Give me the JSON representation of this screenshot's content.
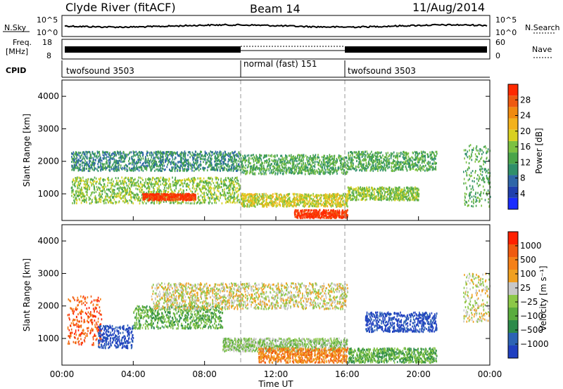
{
  "header": {
    "station": "Clyde River (fitACF)",
    "beam": "Beam 14",
    "date": "11/Aug/2014"
  },
  "noise_panel": {
    "left_label": "N.Sky",
    "left_ticks": [
      "10^5",
      "10^0"
    ],
    "right_label": "N.Search",
    "right_ticks": [
      "10^5",
      "10^0"
    ]
  },
  "freq_panel": {
    "left_label_1": "Freq.",
    "left_label_2": "[MHz]",
    "left_ticks": [
      "18",
      "8"
    ],
    "right_label": "Nave",
    "right_ticks": [
      "60",
      "0"
    ]
  },
  "cpid_panel": {
    "label": "CPID",
    "segments": [
      {
        "text": "twofsound 3503",
        "start_h": 0,
        "end_h": 10
      },
      {
        "text": "normal (fast) 151",
        "start_h": 10,
        "end_h": 16
      },
      {
        "text": "twofsound 3503",
        "start_h": 16,
        "end_h": 24
      }
    ]
  },
  "axes": {
    "xlabel": "Time UT",
    "xticks": [
      "00:00",
      "04:00",
      "08:00",
      "12:00",
      "16:00",
      "20:00",
      "00:00"
    ],
    "ylabel": "Slant Range [km]",
    "yticks": [
      "1000",
      "2000",
      "3000",
      "4000"
    ]
  },
  "power_colorbar": {
    "label": "Power [dB]",
    "ticks": [
      "4",
      "8",
      "12",
      "16",
      "20",
      "24",
      "28"
    ],
    "colors": [
      "#1a2cff",
      "#1f3fae",
      "#2e66a8",
      "#2f8f6a",
      "#4aa54a",
      "#7cc142",
      "#d8d020",
      "#f2b21c",
      "#f08a10",
      "#ee5a10",
      "#ff2a00"
    ]
  },
  "velocity_colorbar": {
    "label": "Velocity [m s⁻¹]",
    "ticks": [
      "1000",
      "500",
      "100",
      "25",
      "−25",
      "−100",
      "−500",
      "−1000"
    ],
    "colors": [
      "#2040c0",
      "#2c63b4",
      "#2c8a4a",
      "#5aac3e",
      "#8cc848",
      "#c8c8c8",
      "#f0a020",
      "#f58018",
      "#f05a10",
      "#ff2000"
    ]
  },
  "chart_data": [
    {
      "type": "line",
      "title": "Clyde River (fitACF)",
      "panel": "N.Sky / N.Search",
      "x_range_h": [
        0,
        24
      ],
      "y_scale": "log",
      "ylim": [
        1,
        100000
      ]
    },
    {
      "type": "line",
      "panel": "Freq. [MHz] / Nave",
      "x_range_h": [
        0,
        24
      ],
      "ylim_freq": [
        8,
        18
      ],
      "ylim_nave": [
        0,
        60
      ]
    },
    {
      "type": "heatmap",
      "panel": "power",
      "xlabel": "Time UT",
      "ylabel": "Slant Range [km]",
      "xlim_h": [
        0,
        24
      ],
      "ylim_km": [
        180,
        4500
      ],
      "colorbar_label": "Power [dB]",
      "colorbar_range": [
        0,
        30
      ],
      "scatter_bands": [
        {
          "t0": 0.5,
          "t1": 10,
          "r0": 1700,
          "r1": 2300,
          "level": 3
        },
        {
          "t0": 0.5,
          "t1": 10,
          "r0": 700,
          "r1": 1500,
          "level": 5
        },
        {
          "t0": 4.5,
          "t1": 7.5,
          "r0": 800,
          "r1": 1000,
          "level": 10
        },
        {
          "t0": 10,
          "t1": 16,
          "r0": 1600,
          "r1": 2200,
          "level": 4
        },
        {
          "t0": 10,
          "t1": 16,
          "r0": 600,
          "r1": 1000,
          "level": 6
        },
        {
          "t0": 13,
          "t1": 16,
          "r0": 250,
          "r1": 500,
          "level": 10
        },
        {
          "t0": 16,
          "t1": 21,
          "r0": 1700,
          "r1": 2300,
          "level": 4
        },
        {
          "t0": 16,
          "t1": 20,
          "r0": 800,
          "r1": 1200,
          "level": 5
        },
        {
          "t0": 22.5,
          "t1": 24,
          "r0": 600,
          "r1": 2500,
          "level": 4
        }
      ]
    },
    {
      "type": "heatmap",
      "panel": "velocity",
      "xlabel": "Time UT",
      "ylabel": "Slant Range [km]",
      "xlim_h": [
        0,
        24
      ],
      "ylim_km": [
        180,
        4500
      ],
      "colorbar_label": "Velocity [m s⁻¹]",
      "colorbar_ticks": [
        1000,
        500,
        100,
        25,
        -25,
        -100,
        -500,
        -1000
      ],
      "scatter_bands": [
        {
          "t0": 0.3,
          "t1": 2.2,
          "r0": 800,
          "r1": 2300,
          "level": 8
        },
        {
          "t0": 2,
          "t1": 4,
          "r0": 700,
          "r1": 1400,
          "level": 0
        },
        {
          "t0": 4,
          "t1": 9,
          "r0": 1300,
          "r1": 2000,
          "level": 3
        },
        {
          "t0": 5,
          "t1": 16,
          "r0": 1900,
          "r1": 2700,
          "level": 5
        },
        {
          "t0": 9,
          "t1": 16,
          "r0": 600,
          "r1": 1000,
          "level": 4
        },
        {
          "t0": 11,
          "t1": 16,
          "r0": 250,
          "r1": 700,
          "level": 7
        },
        {
          "t0": 17,
          "t1": 21,
          "r0": 1200,
          "r1": 1800,
          "level": 0
        },
        {
          "t0": 16,
          "t1": 21,
          "r0": 250,
          "r1": 700,
          "level": 3
        },
        {
          "t0": 22.5,
          "t1": 24,
          "r0": 1500,
          "r1": 3000,
          "level": 5
        }
      ]
    }
  ]
}
